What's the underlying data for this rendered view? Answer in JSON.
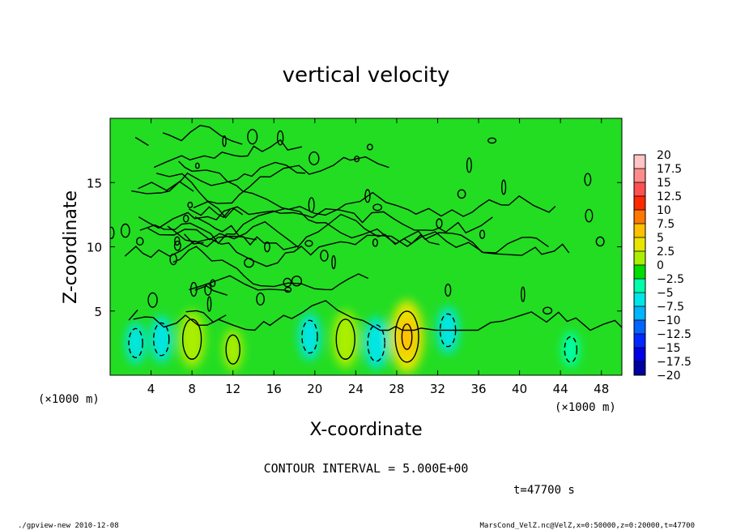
{
  "chart_data": {
    "type": "heatmap",
    "title": "vertical velocity",
    "xlabel": "X-coordinate",
    "ylabel": "Z-coordinate",
    "x_unit": "(×1000 m)",
    "y_unit": "(×1000 m)",
    "xlim": [
      0,
      50
    ],
    "ylim": [
      0,
      20
    ],
    "x_ticks": [
      "4",
      "8",
      "12",
      "16",
      "20",
      "24",
      "28",
      "32",
      "36",
      "40",
      "44",
      "48"
    ],
    "y_ticks": [
      "5",
      "10",
      "15"
    ],
    "x_tick_values": [
      4,
      8,
      12,
      16,
      20,
      24,
      28,
      32,
      36,
      40,
      44,
      48
    ],
    "y_tick_values": [
      5,
      10,
      15
    ],
    "colorbar": {
      "labels": [
        "20",
        "17.5",
        "15",
        "12.5",
        "10",
        "7.5",
        "5",
        "2.5",
        "0",
        "−2.5",
        "−5",
        "−7.5",
        "−10",
        "−12.5",
        "−15",
        "−17.5",
        "−20"
      ],
      "levels": [
        20,
        17.5,
        15,
        12.5,
        10,
        7.5,
        5,
        2.5,
        0,
        -2.5,
        -5,
        -7.5,
        -10,
        -12.5,
        -15,
        -17.5,
        -20
      ],
      "colors": [
        "#ffc4c4",
        "#ff8c8c",
        "#ff5050",
        "#ff2800",
        "#ff7800",
        "#ffc000",
        "#e6e600",
        "#aaee00",
        "#00dd00",
        "#00ffaa",
        "#00e6e6",
        "#00b4ff",
        "#0064ff",
        "#0028ff",
        "#0000e6",
        "#0000a0",
        "#5a00c8"
      ]
    },
    "features": [
      {
        "kind": "updraft",
        "x": 8,
        "z": 2.8,
        "value": 6
      },
      {
        "kind": "updraft",
        "x": 23,
        "z": 2.8,
        "value": 6
      },
      {
        "kind": "updraft",
        "x": 29,
        "z": 3,
        "value": 9
      },
      {
        "kind": "updraft",
        "x": 12,
        "z": 2,
        "value": 3
      },
      {
        "kind": "downdraft",
        "x": 5,
        "z": 2.8,
        "value": -4
      },
      {
        "kind": "downdraft",
        "x": 19.5,
        "z": 3,
        "value": -4
      },
      {
        "kind": "downdraft",
        "x": 26,
        "z": 2.5,
        "value": -5
      },
      {
        "kind": "downdraft",
        "x": 33,
        "z": 3.5,
        "value": -4
      },
      {
        "kind": "downdraft",
        "x": 45,
        "z": 2,
        "value": -2
      },
      {
        "kind": "downdraft",
        "x": 2.5,
        "z": 2.5,
        "value": -3
      }
    ],
    "grid": false,
    "legend": "right"
  },
  "annotations": {
    "contour_interval": "CONTOUR INTERVAL = 5.000E+00",
    "time": "t=47700 s",
    "footer_left": "./gpview-new  2010-12-08",
    "footer_right": "MarsCond_VelZ.nc@VelZ,x=0:50000,z=0:20000,t=47700"
  }
}
